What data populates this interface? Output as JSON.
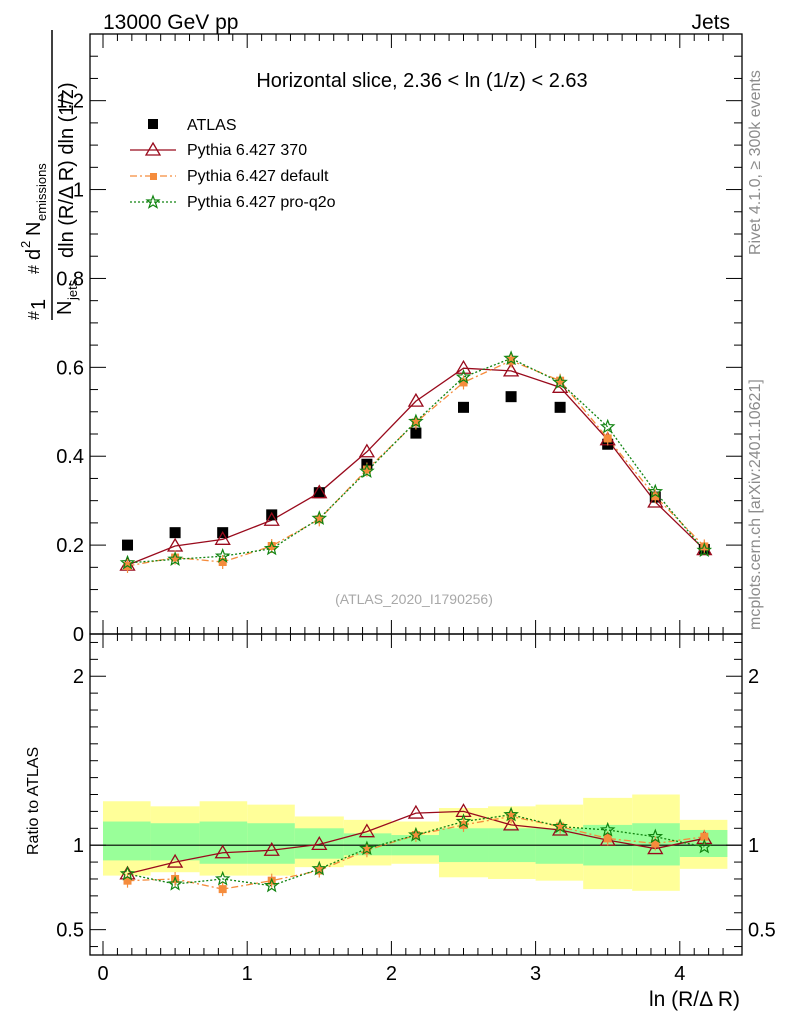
{
  "header": {
    "left": "13000 GeV pp",
    "right": "Jets"
  },
  "side": {
    "rivet": "Rivet 4.1.0, ≥ 300k events",
    "mcplots": "mcplots.cern.ch [arXiv:2401.10621]"
  },
  "ylabel_parts": {
    "hash1": "#",
    "one": "1",
    "n": "N",
    "jets": "jets",
    "hash2": "#",
    "d2": "d",
    "two": "2",
    "nem": "N",
    "emissions": "emissions",
    "denom": "dln (R/Δ R) dln (1/z)"
  },
  "ratio_label": "Ratio to ATLAS",
  "watermark": "(ATLAS_2020_I1790256)",
  "colors": {
    "atlas": "#000000",
    "p370": "#990a1c",
    "pdef": "#f58c3c",
    "pq2o": "#118411",
    "band_inner": "#99ff99",
    "band_outer": "#ffff99"
  },
  "chart_data": {
    "type": "line",
    "title": "Horizontal slice, 2.36 < ln (1/z) < 2.63",
    "xlabel": "ln (R/Δ R)",
    "xlim": [
      -0.15,
      4.4
    ],
    "x_ticks": [
      "0",
      "1",
      "2",
      "3",
      "4"
    ],
    "main": {
      "ylim": [
        0,
        1.35
      ],
      "y_ticks": [
        "0",
        "0.2",
        "0.4",
        "0.6",
        "0.8",
        "1",
        "1.2"
      ],
      "x": [
        0.17,
        0.5,
        0.83,
        1.17,
        1.5,
        1.83,
        2.17,
        2.5,
        2.83,
        3.17,
        3.5,
        3.83,
        4.17
      ],
      "series": [
        {
          "name": "ATLAS",
          "style": "square",
          "values": [
            0.2,
            0.228,
            0.228,
            0.268,
            0.318,
            0.382,
            0.452,
            0.51,
            0.534,
            0.51,
            0.427,
            0.308,
            0.19
          ]
        },
        {
          "name": "Pythia 6.427 370",
          "style": "triangle",
          "values": [
            0.155,
            0.198,
            0.213,
            0.256,
            0.318,
            0.41,
            0.524,
            0.598,
            0.592,
            0.555,
            0.437,
            0.297,
            0.19
          ]
        },
        {
          "name": "Pythia 6.427 default",
          "style": "dashsquare",
          "values": [
            0.153,
            0.172,
            0.162,
            0.198,
            0.258,
            0.37,
            0.476,
            0.566,
            0.615,
            0.57,
            0.44,
            0.31,
            0.197
          ]
        },
        {
          "name": "Pythia 6.427 pro-q2o",
          "style": "star",
          "values": [
            0.16,
            0.168,
            0.175,
            0.192,
            0.26,
            0.366,
            0.478,
            0.578,
            0.62,
            0.566,
            0.466,
            0.32,
            0.188
          ]
        }
      ]
    },
    "ratio": {
      "ylim": [
        0.35,
        2.25
      ],
      "y_ticks": [
        "0.5",
        "1",
        "2"
      ],
      "x_edges": [
        0,
        0.33,
        0.67,
        1,
        1.33,
        1.67,
        2,
        2.33,
        2.67,
        3,
        3.33,
        3.67,
        4,
        4.33
      ],
      "band_inner": [
        [
          0.91,
          1.14
        ],
        [
          0.91,
          1.13
        ],
        [
          0.89,
          1.14
        ],
        [
          0.89,
          1.13
        ],
        [
          0.92,
          1.1
        ],
        [
          0.94,
          1.07
        ],
        [
          0.94,
          1.06
        ],
        [
          0.9,
          1.1
        ],
        [
          0.9,
          1.1
        ],
        [
          0.89,
          1.1
        ],
        [
          0.88,
          1.12
        ],
        [
          0.88,
          1.13
        ],
        [
          0.93,
          1.09
        ]
      ],
      "band_outer": [
        [
          0.82,
          1.26
        ],
        [
          0.84,
          1.23
        ],
        [
          0.82,
          1.26
        ],
        [
          0.82,
          1.24
        ],
        [
          0.87,
          1.17
        ],
        [
          0.88,
          1.15
        ],
        [
          0.89,
          1.14
        ],
        [
          0.81,
          1.22
        ],
        [
          0.8,
          1.23
        ],
        [
          0.79,
          1.24
        ],
        [
          0.74,
          1.28
        ],
        [
          0.73,
          1.3
        ],
        [
          0.86,
          1.15
        ]
      ],
      "series": [
        {
          "name": "Pythia 6.427 370",
          "values": [
            0.83,
            0.9,
            0.955,
            0.97,
            1.005,
            1.08,
            1.19,
            1.2,
            1.12,
            1.09,
            1.03,
            0.98,
            1.04
          ]
        },
        {
          "name": "Pythia 6.427 default",
          "values": [
            0.79,
            0.8,
            0.74,
            0.79,
            0.85,
            0.97,
            1.06,
            1.12,
            1.17,
            1.11,
            1.04,
            1.01,
            1.05
          ]
        },
        {
          "name": "Pythia 6.427 pro-q2o",
          "values": [
            0.83,
            0.77,
            0.8,
            0.76,
            0.86,
            0.98,
            1.06,
            1.14,
            1.18,
            1.11,
            1.09,
            1.05,
            0.99
          ]
        }
      ]
    }
  }
}
